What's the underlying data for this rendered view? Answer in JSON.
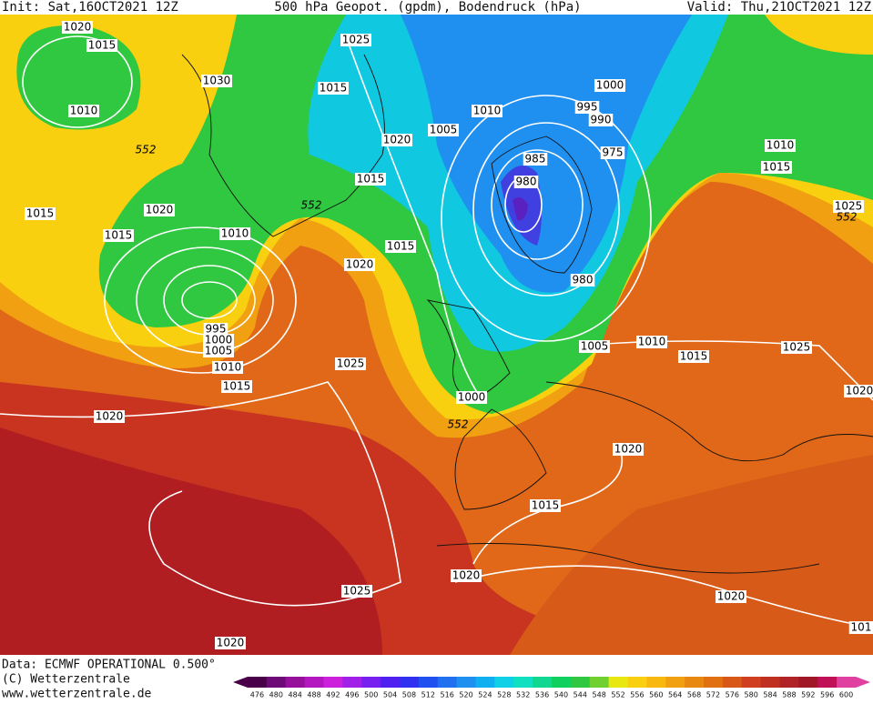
{
  "header": {
    "init": "Init: Sat,16OCT2021 12Z",
    "title": "500 hPa Geopot. (gpdm), Bodendruck (hPa)",
    "valid": "Valid: Thu,21OCT2021 12Z"
  },
  "footer": {
    "data": "Data: ECMWF OPERATIONAL 0.500°",
    "copyright": "(C) Wetterzentrale",
    "url": "www.wetterzentrale.de"
  },
  "colorbar": {
    "ticks": [
      476,
      480,
      484,
      488,
      492,
      496,
      500,
      504,
      508,
      512,
      516,
      520,
      524,
      528,
      532,
      536,
      540,
      544,
      548,
      552,
      556,
      560,
      564,
      568,
      572,
      576,
      580,
      584,
      588,
      592,
      596,
      600
    ],
    "colors": [
      "#4a0048",
      "#6e0a78",
      "#96109c",
      "#b416c0",
      "#cc20dc",
      "#a020e8",
      "#7820f0",
      "#5020f0",
      "#3030f0",
      "#2050f0",
      "#2070f0",
      "#2090f0",
      "#10b0f0",
      "#10d0e8",
      "#10e0c0",
      "#10d890",
      "#10d060",
      "#30c840",
      "#70d030",
      "#e8e810",
      "#f8d010",
      "#f8b810",
      "#f0a010",
      "#e88810",
      "#e07010",
      "#d85818",
      "#d04020",
      "#c03020",
      "#b02428",
      "#a01828",
      "#c01058",
      "#e040a0"
    ]
  },
  "isobar_labels": [
    "1020",
    "1015",
    "1030",
    "1010",
    "552",
    "1015",
    "1020",
    "1015",
    "1010",
    "552",
    "1025",
    "1015",
    "1020",
    "1015",
    "1005",
    "1010",
    "1000",
    "995",
    "990",
    "985",
    "975",
    "980",
    "980",
    "1015",
    "1020",
    "995",
    "1000",
    "1005",
    "1010",
    "1015",
    "1025",
    "1020",
    "1000",
    "552",
    "1005",
    "1010",
    "1015",
    "1025",
    "1010",
    "1015",
    "1025",
    "552",
    "1020",
    "1020",
    "1015",
    "1020",
    "1025",
    "1020",
    "1020",
    "101"
  ]
}
